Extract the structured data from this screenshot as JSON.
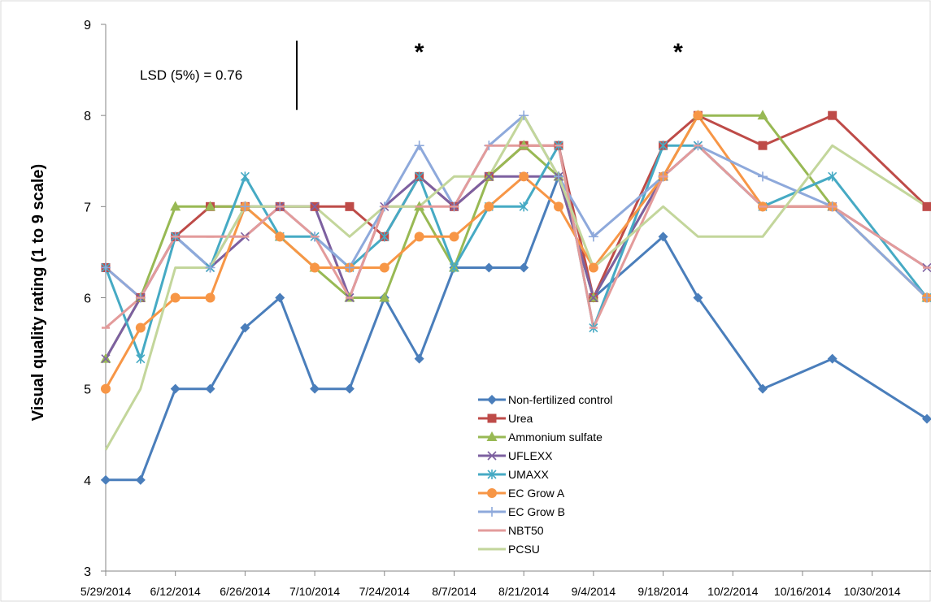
{
  "chart_data": {
    "type": "line",
    "title": "",
    "xlabel": "",
    "ylabel": "Visual quality rating (1 to 9 scale)",
    "ylim": [
      3,
      9
    ],
    "yticks": [
      3,
      4,
      5,
      6,
      7,
      8,
      9
    ],
    "xlim": [
      "2014-05-29",
      "2014-11-10"
    ],
    "xtick_labels": [
      "5/29/2014",
      "6/12/2014",
      "6/26/2014",
      "7/10/2014",
      "7/24/2014",
      "8/7/2014",
      "8/21/2014",
      "9/4/2014",
      "9/18/2014",
      "10/2/2014",
      "10/16/2014",
      "10/30/2014"
    ],
    "grid": false,
    "legend_position": "lower-center",
    "annotations": {
      "lsd_text": "LSD (5%) = 0.76",
      "lsd_bar_length": 0.76,
      "stars": [
        "*",
        "*"
      ],
      "star_dates": [
        "2014-07-31",
        "2014-09-21"
      ]
    },
    "x": [
      "2014-05-29",
      "2014-06-05",
      "2014-06-12",
      "2014-06-19",
      "2014-06-26",
      "2014-07-03",
      "2014-07-10",
      "2014-07-17",
      "2014-07-24",
      "2014-07-31",
      "2014-08-07",
      "2014-08-14",
      "2014-08-21",
      "2014-08-28",
      "2014-09-04",
      "2014-09-18",
      "2014-09-25",
      "2014-10-08",
      "2014-10-22",
      "2014-11-10"
    ],
    "series": [
      {
        "name": "Non-fertilized control",
        "color": "#4A7EBB",
        "marker": "diamond",
        "values": [
          4.0,
          4.0,
          5.0,
          5.0,
          5.67,
          6.0,
          5.0,
          5.0,
          6.0,
          5.33,
          6.33,
          6.33,
          6.33,
          7.33,
          6.0,
          6.67,
          6.0,
          5.0,
          5.33,
          4.67
        ]
      },
      {
        "name": "Urea",
        "color": "#BE4B48",
        "marker": "square",
        "values": [
          6.33,
          6.0,
          6.67,
          7.0,
          7.0,
          7.0,
          7.0,
          7.0,
          6.67,
          7.33,
          7.0,
          7.33,
          7.67,
          7.67,
          6.0,
          7.67,
          8.0,
          7.67,
          8.0,
          7.0
        ]
      },
      {
        "name": "Ammonium sulfate",
        "color": "#98B954",
        "marker": "triangle",
        "values": [
          5.33,
          6.0,
          7.0,
          7.0,
          7.0,
          6.67,
          6.33,
          6.0,
          6.0,
          7.0,
          6.33,
          7.33,
          7.67,
          7.33,
          6.0,
          7.33,
          8.0,
          8.0,
          7.0,
          6.0
        ]
      },
      {
        "name": "UFLEXX",
        "color": "#7D60A0",
        "marker": "x",
        "values": [
          5.33,
          6.0,
          6.67,
          6.33,
          6.67,
          7.0,
          7.0,
          6.0,
          7.0,
          7.33,
          7.0,
          7.33,
          7.33,
          7.33,
          6.0,
          7.33,
          7.67,
          7.0,
          7.0,
          6.33
        ]
      },
      {
        "name": "UMAXX",
        "color": "#46AAC4",
        "marker": "asterisk",
        "values": [
          6.33,
          5.33,
          6.67,
          6.33,
          7.33,
          6.67,
          6.67,
          6.33,
          6.67,
          7.33,
          6.33,
          7.0,
          7.0,
          7.67,
          5.67,
          7.67,
          7.67,
          7.0,
          7.33,
          6.0
        ]
      },
      {
        "name": "EC Grow A",
        "color": "#F79646",
        "marker": "circle",
        "values": [
          5.0,
          5.67,
          6.0,
          6.0,
          7.0,
          6.67,
          6.33,
          6.33,
          6.33,
          6.67,
          6.67,
          7.0,
          7.33,
          7.0,
          6.33,
          7.33,
          8.0,
          7.0,
          7.0,
          6.0
        ]
      },
      {
        "name": "EC Grow B",
        "color": "#8EA9DB",
        "marker": "plus",
        "values": [
          6.33,
          6.0,
          6.67,
          6.33,
          7.0,
          7.0,
          6.67,
          6.33,
          7.0,
          7.67,
          7.0,
          7.67,
          8.0,
          7.33,
          6.67,
          7.33,
          7.67,
          7.33,
          7.0,
          6.0
        ]
      },
      {
        "name": "NBT50",
        "color": "#E39B9B",
        "marker": "dash",
        "values": [
          5.67,
          6.0,
          6.67,
          6.67,
          6.67,
          7.0,
          6.67,
          6.0,
          7.0,
          7.0,
          7.0,
          7.67,
          7.67,
          7.67,
          5.67,
          7.33,
          7.67,
          7.0,
          7.0,
          6.33
        ]
      },
      {
        "name": "PCSU",
        "color": "#C3D69B",
        "marker": "line",
        "values": [
          4.33,
          5.0,
          6.33,
          6.33,
          7.0,
          7.0,
          7.0,
          6.67,
          7.0,
          7.0,
          7.33,
          7.33,
          8.0,
          7.33,
          6.33,
          7.0,
          6.67,
          6.67,
          7.67,
          7.0
        ]
      }
    ]
  }
}
